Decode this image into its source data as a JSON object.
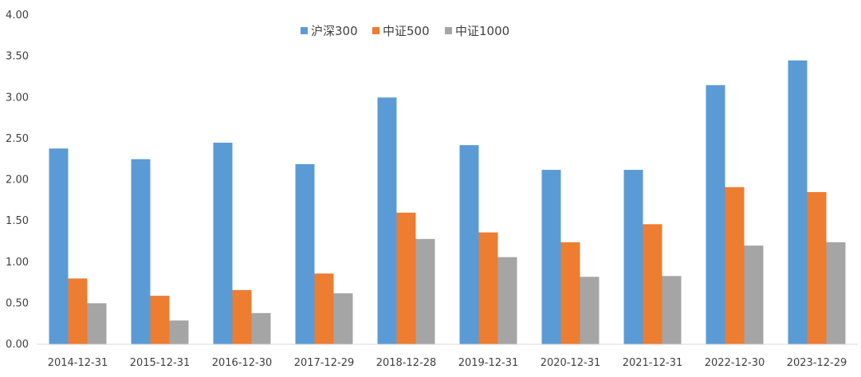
{
  "chart_data": {
    "type": "bar",
    "categories": [
      "2014-12-31",
      "2015-12-31",
      "2016-12-30",
      "2017-12-29",
      "2018-12-28",
      "2019-12-31",
      "2020-12-31",
      "2021-12-31",
      "2022-12-30",
      "2023-12-29"
    ],
    "series": [
      {
        "name": "沪深300",
        "color": "#5b9bd5",
        "values": [
          2.38,
          2.25,
          2.45,
          2.19,
          3.0,
          2.42,
          2.12,
          2.12,
          3.15,
          3.45
        ]
      },
      {
        "name": "中证500",
        "color": "#ed7d31",
        "values": [
          0.8,
          0.59,
          0.66,
          0.86,
          1.6,
          1.36,
          1.24,
          1.46,
          1.91,
          1.85
        ]
      },
      {
        "name": "中证1000",
        "color": "#a5a5a5",
        "values": [
          0.5,
          0.29,
          0.38,
          0.62,
          1.28,
          1.06,
          0.82,
          0.83,
          1.2,
          1.24
        ]
      }
    ],
    "ylim": [
      0,
      4
    ],
    "yticks": [
      "0.00",
      "0.50",
      "1.00",
      "1.50",
      "2.00",
      "2.50",
      "3.00",
      "3.50",
      "4.00"
    ],
    "legend_position": "top-center",
    "grid": false
  }
}
